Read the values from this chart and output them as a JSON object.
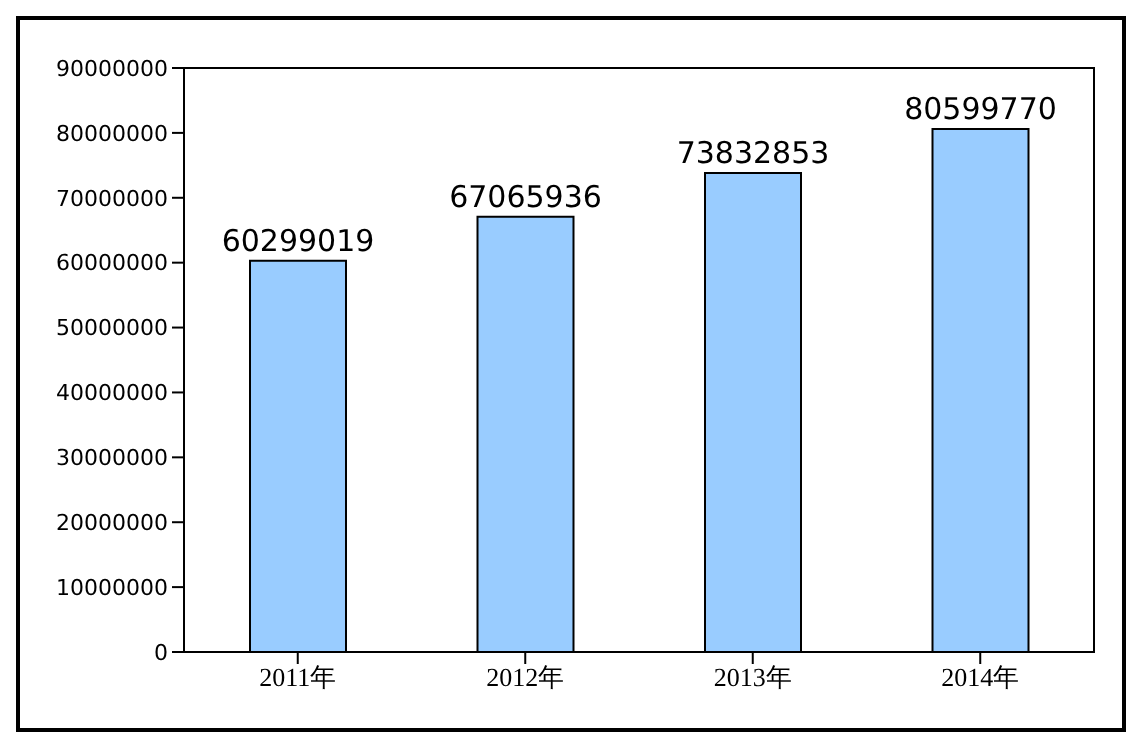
{
  "chart_data": {
    "type": "bar",
    "categories": [
      "2011年",
      "2012年",
      "2013年",
      "2014年"
    ],
    "values": [
      60299019,
      67065936,
      73832853,
      80599770
    ],
    "color": "#99ccff",
    "ylim": [
      0,
      90000000
    ],
    "yticks": [
      0,
      10000000,
      20000000,
      30000000,
      40000000,
      50000000,
      60000000,
      70000000,
      80000000,
      90000000
    ],
    "grid": false,
    "data_labels": true,
    "legend": false
  }
}
